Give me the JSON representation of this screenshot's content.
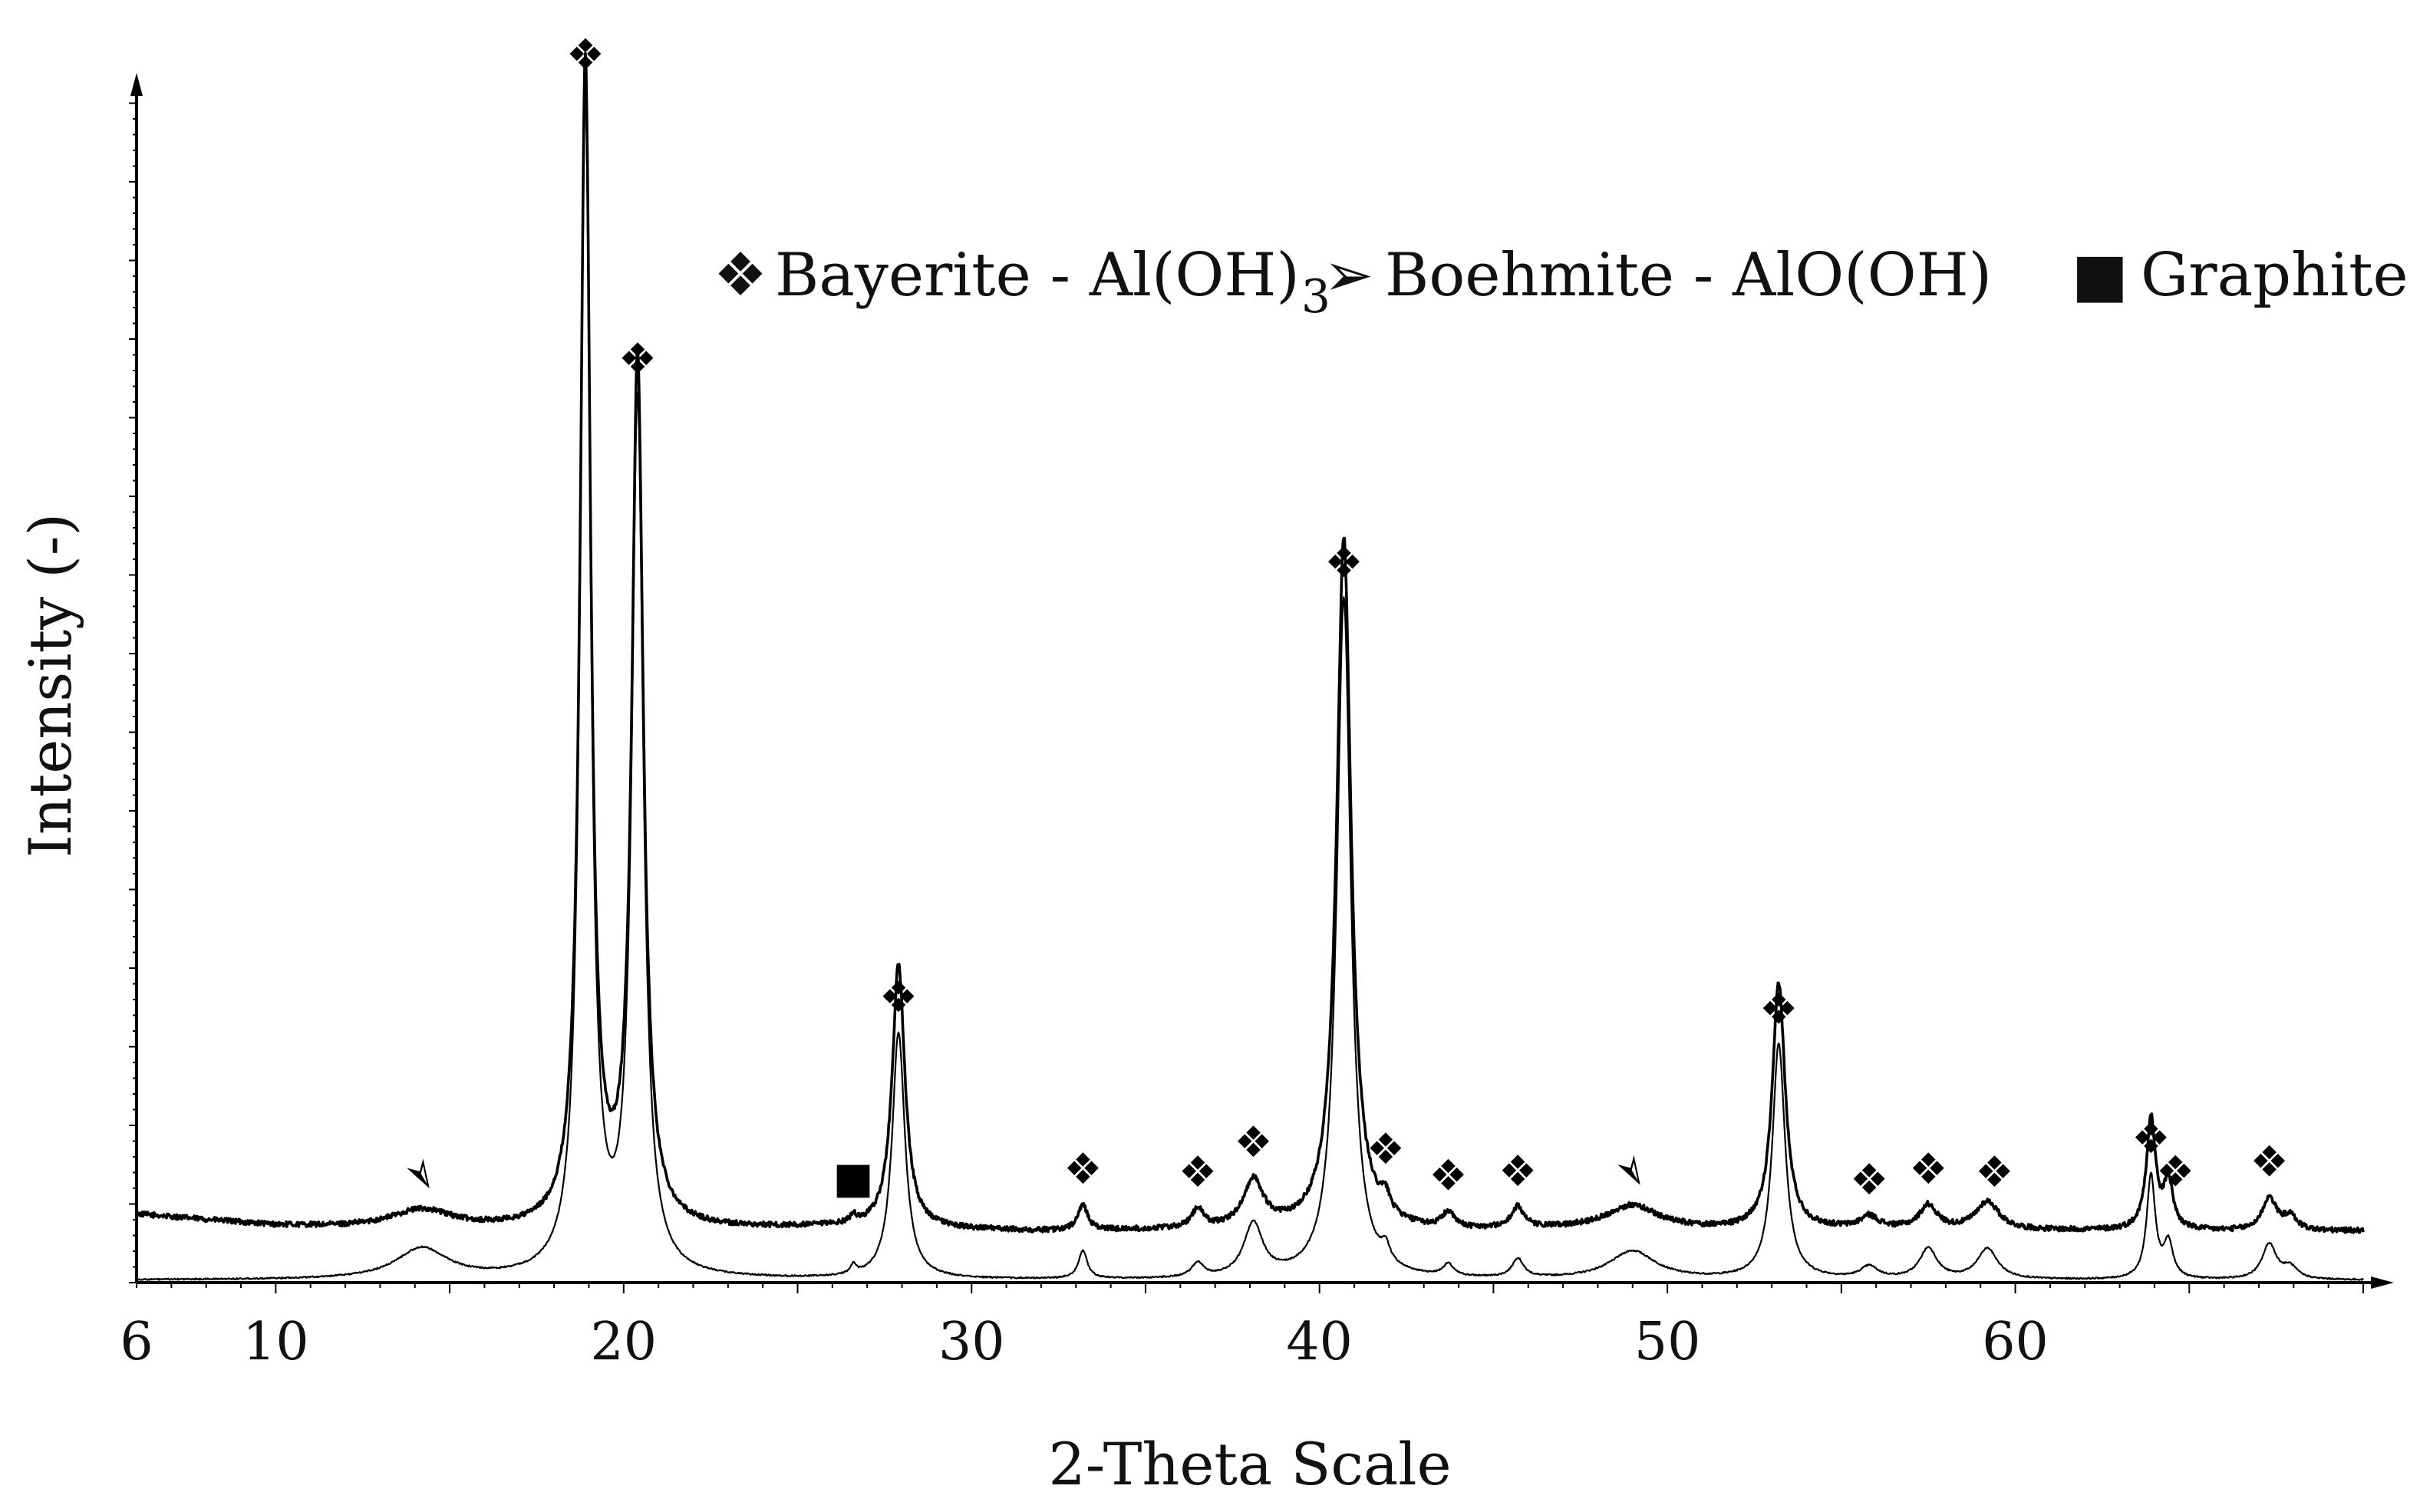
{
  "chart_data": {
    "type": "line",
    "xlabel": "2-Theta Scale",
    "ylabel": "Intensity (-)",
    "xlim": [
      6,
      70
    ],
    "x_ticks": [
      6,
      10,
      20,
      30,
      40,
      50,
      60
    ],
    "y_ticks_labeled": false,
    "grid": false,
    "legend": {
      "placement": "top-right",
      "entries": [
        {
          "symbol": "❖",
          "text": "Bayerite - Al(OH)",
          "subscript": "3"
        },
        {
          "symbol": "➢",
          "text": "Boehmite - AlO(OH)",
          "subscript": ""
        },
        {
          "symbol": "■",
          "text": "Graphite",
          "subscript": ""
        }
      ]
    },
    "series": [
      {
        "baseline": [
          [
            6,
            28
          ],
          [
            10,
            18
          ],
          [
            12,
            16
          ],
          [
            16,
            14
          ],
          [
            18,
            13
          ],
          [
            22,
            14
          ],
          [
            26,
            16
          ],
          [
            30,
            14
          ],
          [
            32,
            13
          ],
          [
            36,
            14
          ],
          [
            40,
            14
          ],
          [
            43,
            13
          ],
          [
            46,
            14
          ],
          [
            48,
            15
          ],
          [
            52,
            14
          ],
          [
            56,
            15
          ],
          [
            60,
            14
          ],
          [
            64,
            14
          ],
          [
            68,
            13
          ],
          [
            70,
            14
          ]
        ],
        "peaks": [
          [
            14.2,
            16,
            1.1
          ],
          [
            18.9,
            990,
            0.18
          ],
          [
            20.4,
            735,
            0.2
          ],
          [
            26.6,
            6,
            0.12
          ],
          [
            27.9,
            225,
            0.22
          ],
          [
            33.2,
            22,
            0.16
          ],
          [
            36.5,
            16,
            0.2
          ],
          [
            38.1,
            40,
            0.35
          ],
          [
            40.7,
            590,
            0.25
          ],
          [
            41.9,
            15,
            0.16
          ],
          [
            43.7,
            13,
            0.2
          ],
          [
            45.7,
            18,
            0.22
          ],
          [
            49.0,
            20,
            0.9
          ],
          [
            53.2,
            210,
            0.22
          ],
          [
            55.8,
            10,
            0.3
          ],
          [
            57.5,
            20,
            0.3
          ],
          [
            59.2,
            24,
            0.4
          ],
          [
            63.9,
            95,
            0.16
          ],
          [
            64.4,
            40,
            0.16
          ],
          [
            67.3,
            28,
            0.25
          ],
          [
            67.9,
            12,
            0.25
          ]
        ],
        "noise": 2.2
      },
      {
        "baseline": [
          [
            6,
            2
          ],
          [
            70,
            2
          ]
        ],
        "peaks": [
          [
            14.2,
            26,
            0.9
          ],
          [
            18.9,
            1000,
            0.18
          ],
          [
            20.4,
            740,
            0.2
          ],
          [
            26.6,
            8,
            0.1
          ],
          [
            27.9,
            210,
            0.22
          ],
          [
            33.2,
            24,
            0.15
          ],
          [
            36.5,
            12,
            0.2
          ],
          [
            38.1,
            45,
            0.33
          ],
          [
            40.7,
            580,
            0.24
          ],
          [
            41.9,
            14,
            0.15
          ],
          [
            43.7,
            10,
            0.18
          ],
          [
            45.7,
            16,
            0.2
          ],
          [
            49.0,
            24,
            0.8
          ],
          [
            53.2,
            200,
            0.22
          ],
          [
            55.8,
            10,
            0.3
          ],
          [
            57.5,
            26,
            0.3
          ],
          [
            59.2,
            26,
            0.35
          ],
          [
            63.9,
            88,
            0.15
          ],
          [
            64.4,
            30,
            0.16
          ],
          [
            67.3,
            30,
            0.25
          ],
          [
            67.9,
            10,
            0.25
          ]
        ],
        "noise": 0.6
      }
    ],
    "annotations": [
      {
        "symbol": "➢",
        "x": 14.2,
        "series": 0
      },
      {
        "symbol": "❖",
        "x": 18.9,
        "series": 1
      },
      {
        "symbol": "❖",
        "x": 20.4,
        "series": 1
      },
      {
        "symbol": "■",
        "x": 26.6,
        "series": 0
      },
      {
        "symbol": "❖",
        "x": 27.9,
        "series": 1
      },
      {
        "symbol": "❖",
        "x": 33.2,
        "series": 0
      },
      {
        "symbol": "❖",
        "x": 36.5,
        "series": 0
      },
      {
        "symbol": "❖",
        "x": 38.1,
        "series": 0
      },
      {
        "symbol": "❖",
        "x": 40.7,
        "series": 1
      },
      {
        "symbol": "❖",
        "x": 41.9,
        "series": 0
      },
      {
        "symbol": "❖",
        "x": 43.7,
        "series": 0
      },
      {
        "symbol": "❖",
        "x": 45.7,
        "series": 0
      },
      {
        "symbol": "➢",
        "x": 49.0,
        "series": 0
      },
      {
        "symbol": "❖",
        "x": 53.2,
        "series": 1
      },
      {
        "symbol": "❖",
        "x": 55.8,
        "series": 0
      },
      {
        "symbol": "❖",
        "x": 57.5,
        "series": 0
      },
      {
        "symbol": "❖",
        "x": 59.4,
        "series": 0
      },
      {
        "symbol": "❖",
        "x": 63.9,
        "series": 1
      },
      {
        "symbol": "❖",
        "x": 64.6,
        "series": 0
      },
      {
        "symbol": "❖",
        "x": 67.3,
        "series": 0
      }
    ]
  }
}
